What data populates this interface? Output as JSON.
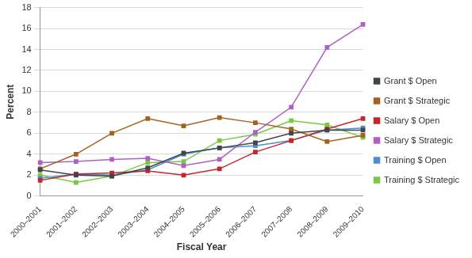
{
  "chart_data": {
    "type": "line",
    "x_label": "Fiscal Year",
    "y_label": "Percent",
    "categories": [
      "2000–2001",
      "2001–2002",
      "2002–2003",
      "2003–2004",
      "2004–2005",
      "2005–2006",
      "2006–2007",
      "2007–2008",
      "2008–2009",
      "2009–2010"
    ],
    "series": [
      {
        "name": "Grant $ Open",
        "color": "#404548",
        "values": [
          2.5,
          2.0,
          1.9,
          2.7,
          4.1,
          4.6,
          5.1,
          6.0,
          6.3,
          6.3
        ]
      },
      {
        "name": "Grant $ Strategic",
        "color": "#a5621e",
        "values": [
          2.6,
          4.0,
          6.0,
          7.4,
          6.7,
          7.5,
          7.0,
          6.4,
          5.2,
          5.8
        ]
      },
      {
        "name": "Salary $ Open",
        "color": "#c8242b",
        "values": [
          1.5,
          2.1,
          2.2,
          2.4,
          2.0,
          2.6,
          4.2,
          5.3,
          6.4,
          7.4
        ]
      },
      {
        "name": "Salary $ Strategic",
        "color": "#b25ec6",
        "values": [
          3.2,
          3.3,
          3.5,
          3.6,
          2.9,
          3.5,
          6.1,
          8.5,
          14.2,
          16.4
        ]
      },
      {
        "name": "Training $ Open",
        "color": "#4a8fd0",
        "values": [
          1.7,
          2.1,
          2.0,
          2.5,
          4.0,
          4.6,
          4.8,
          5.3,
          6.3,
          6.5
        ]
      },
      {
        "name": "Training $ Strategic",
        "color": "#79c940",
        "values": [
          2.0,
          1.3,
          1.9,
          3.2,
          3.3,
          5.3,
          5.9,
          7.2,
          6.8,
          5.6
        ]
      }
    ],
    "ylim": [
      0,
      18
    ],
    "yticks": [
      0,
      2,
      4,
      6,
      8,
      10,
      12,
      14,
      16,
      18
    ],
    "grid": true,
    "legend": "right",
    "marker": "square",
    "line_style": "solid"
  }
}
